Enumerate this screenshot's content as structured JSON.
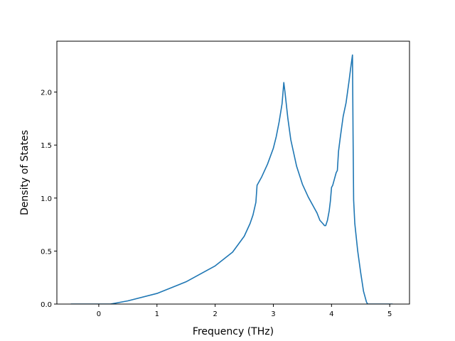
{
  "chart_data": {
    "type": "line",
    "title": "",
    "xlabel": "Frequency (THz)",
    "ylabel": "Density of States",
    "xlim": [
      -0.72,
      5.34
    ],
    "ylim": [
      0.0,
      2.48
    ],
    "xticks": [
      0,
      1,
      2,
      3,
      4,
      5
    ],
    "xtick_labels": [
      "0",
      "1",
      "2",
      "3",
      "4",
      "5"
    ],
    "yticks": [
      0.0,
      0.5,
      1.0,
      1.5,
      2.0
    ],
    "ytick_labels": [
      "0.0",
      "0.5",
      "1.0",
      "1.5",
      "2.0"
    ],
    "grid": false,
    "legend": "none",
    "series": [
      {
        "color": "#1f77b4",
        "x": [
          -0.48,
          0.0,
          0.2,
          0.5,
          1.0,
          1.5,
          2.0,
          2.3,
          2.5,
          2.6,
          2.65,
          2.7,
          2.72,
          2.8,
          2.9,
          3.0,
          3.05,
          3.1,
          3.15,
          3.18,
          3.2,
          3.25,
          3.3,
          3.4,
          3.5,
          3.6,
          3.7,
          3.75,
          3.8,
          3.85,
          3.88,
          3.9,
          3.93,
          3.96,
          3.98,
          4.0,
          4.02,
          4.05,
          4.08,
          4.1,
          4.12,
          4.15,
          4.2,
          4.25,
          4.3,
          4.33,
          4.36,
          4.37,
          4.38,
          4.4,
          4.45,
          4.5,
          4.55,
          4.6,
          4.62,
          5.05
        ],
        "y": [
          0.0,
          0.0,
          0.0,
          0.03,
          0.1,
          0.21,
          0.36,
          0.49,
          0.64,
          0.76,
          0.84,
          0.96,
          1.12,
          1.2,
          1.32,
          1.47,
          1.58,
          1.72,
          1.89,
          2.09,
          2.0,
          1.75,
          1.55,
          1.3,
          1.13,
          1.01,
          0.91,
          0.86,
          0.79,
          0.76,
          0.74,
          0.74,
          0.79,
          0.88,
          0.97,
          1.1,
          1.12,
          1.18,
          1.24,
          1.26,
          1.44,
          1.57,
          1.77,
          1.9,
          2.1,
          2.23,
          2.35,
          1.6,
          0.98,
          0.76,
          0.5,
          0.3,
          0.12,
          0.02,
          0.0,
          0.0
        ]
      }
    ]
  }
}
